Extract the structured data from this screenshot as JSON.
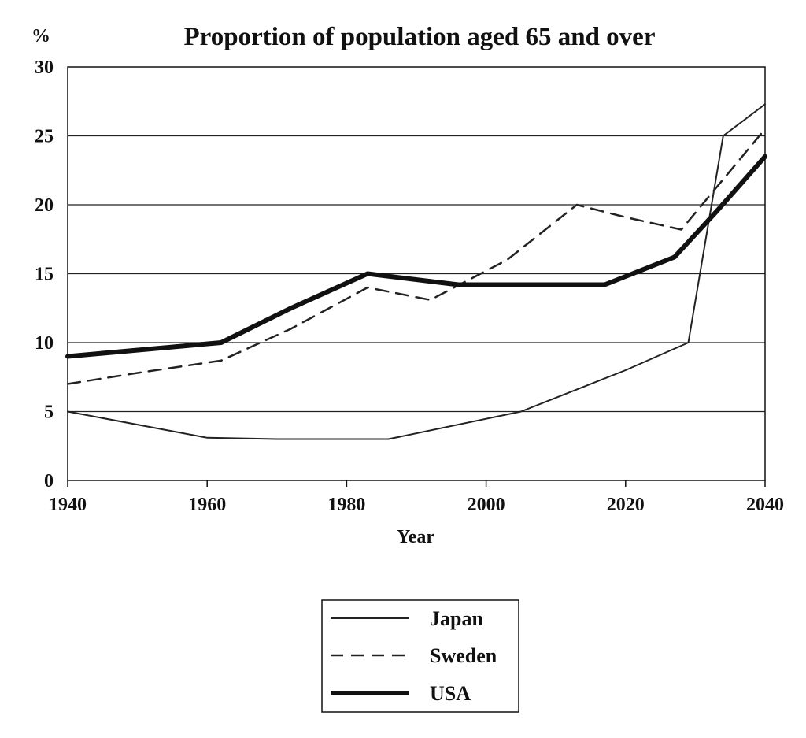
{
  "chart_data": {
    "type": "line",
    "title": "Proportion of population aged 65 and over",
    "xlabel": "Year",
    "ylabel": "%",
    "xlim": [
      1940,
      2040
    ],
    "ylim": [
      0,
      30
    ],
    "x_ticks": [
      1940,
      1960,
      1980,
      2000,
      2020,
      2040
    ],
    "y_ticks": [
      0,
      5,
      10,
      15,
      20,
      25,
      30
    ],
    "grid": "horizontal",
    "legend_position": "bottom-center",
    "series": [
      {
        "name": "Japan",
        "style": "thin-solid",
        "color": "#222222",
        "points": [
          [
            1940,
            5
          ],
          [
            1960,
            3.1
          ],
          [
            1970,
            3
          ],
          [
            1986,
            3
          ],
          [
            2005,
            5
          ],
          [
            2020,
            8
          ],
          [
            2029,
            10
          ],
          [
            2034,
            25
          ],
          [
            2040,
            27.3
          ]
        ]
      },
      {
        "name": "Sweden",
        "style": "dashed",
        "color": "#222222",
        "points": [
          [
            1940,
            7
          ],
          [
            1950,
            7.8
          ],
          [
            1962,
            8.7
          ],
          [
            1972,
            11
          ],
          [
            1983,
            14
          ],
          [
            1992,
            13.1
          ],
          [
            2003,
            16
          ],
          [
            2013,
            20
          ],
          [
            2020,
            19.1
          ],
          [
            2028,
            18.2
          ],
          [
            2040,
            25.5
          ]
        ]
      },
      {
        "name": "USA",
        "style": "thick-solid",
        "color": "#111111",
        "points": [
          [
            1940,
            9
          ],
          [
            1962,
            10
          ],
          [
            1972,
            12.5
          ],
          [
            1983,
            15
          ],
          [
            1996,
            14.2
          ],
          [
            2005,
            14.2
          ],
          [
            2017,
            14.2
          ],
          [
            2027,
            16.2
          ],
          [
            2033,
            19.5
          ],
          [
            2040,
            23.5
          ]
        ]
      }
    ]
  }
}
